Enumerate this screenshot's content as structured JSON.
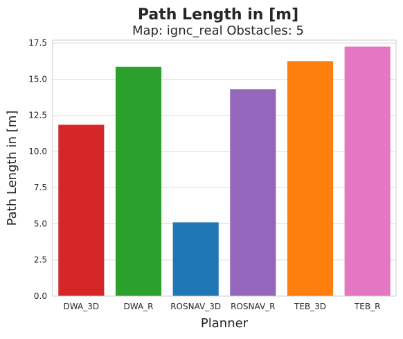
{
  "chart_data": {
    "type": "bar",
    "suptitle": "Path Length in [m]",
    "title": "Map: ignc_real Obstacles: 5",
    "xlabel": "Planner",
    "ylabel": "Path Length in [m]",
    "categories": [
      "DWA_3D",
      "DWA_R",
      "ROSNAV_3D",
      "ROSNAV_R",
      "TEB_3D",
      "TEB_R"
    ],
    "values": [
      11.85,
      15.85,
      5.1,
      14.3,
      16.25,
      17.25
    ],
    "colors": [
      "#d62728",
      "#2ca02c",
      "#1f77b4",
      "#9467bd",
      "#ff7f0e",
      "#e377c2"
    ],
    "ylim": [
      0,
      17.7
    ],
    "yticks": [
      0.0,
      2.5,
      5.0,
      7.5,
      10.0,
      12.5,
      15.0,
      17.5
    ],
    "ytick_labels": [
      "0.0",
      "2.5",
      "5.0",
      "7.5",
      "10.0",
      "12.5",
      "15.0",
      "17.5"
    ],
    "grid": "horizontal",
    "legend": "none"
  }
}
